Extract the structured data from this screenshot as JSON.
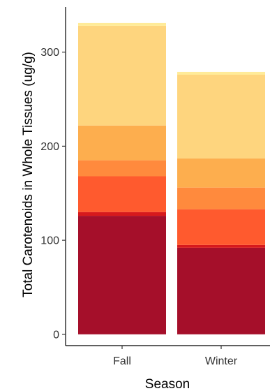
{
  "chart_data": {
    "type": "bar",
    "stacked": true,
    "categories": [
      "Fall",
      "Winter"
    ],
    "segment_colors": [
      "#a50f2a",
      "#d7191c",
      "#ff5a2e",
      "#ff8a3d",
      "#fdae4e",
      "#fed57e",
      "#ffeb99"
    ],
    "series": [
      {
        "values": [
          126,
          92
        ]
      },
      {
        "values": [
          4,
          3
        ]
      },
      {
        "values": [
          38,
          38
        ]
      },
      {
        "values": [
          17,
          23
        ]
      },
      {
        "values": [
          37,
          31
        ]
      },
      {
        "values": [
          106,
          89
        ]
      },
      {
        "values": [
          3,
          3
        ]
      }
    ],
    "totals": [
      331,
      279
    ],
    "xlabel": "Season",
    "ylabel": "Total Carotenoids in Whole Tissues (ug/g)",
    "yticks": [
      0,
      100,
      200,
      300
    ],
    "ylim": [
      -12,
      348
    ],
    "grid": false,
    "legend": "none"
  }
}
